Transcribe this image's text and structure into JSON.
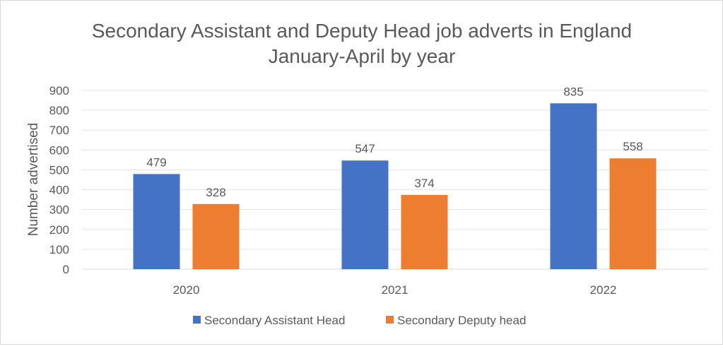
{
  "chart_data": {
    "type": "bar",
    "title": "Secondary Assistant and Deputy Head job adverts in England",
    "subtitle": "January-April by year",
    "xlabel": "",
    "ylabel": "Number advertised",
    "ylim": [
      0,
      900
    ],
    "yticks": [
      0,
      100,
      200,
      300,
      400,
      500,
      600,
      700,
      800,
      900
    ],
    "grid": true,
    "legend_position": "bottom",
    "categories": [
      "2020",
      "2021",
      "2022"
    ],
    "series": [
      {
        "name": "Secondary Assistant Head",
        "color": "#4472C4",
        "values": [
          479,
          547,
          835
        ]
      },
      {
        "name": "Secondary Deputy head",
        "color": "#ED7D31",
        "values": [
          328,
          374,
          558
        ]
      }
    ]
  }
}
